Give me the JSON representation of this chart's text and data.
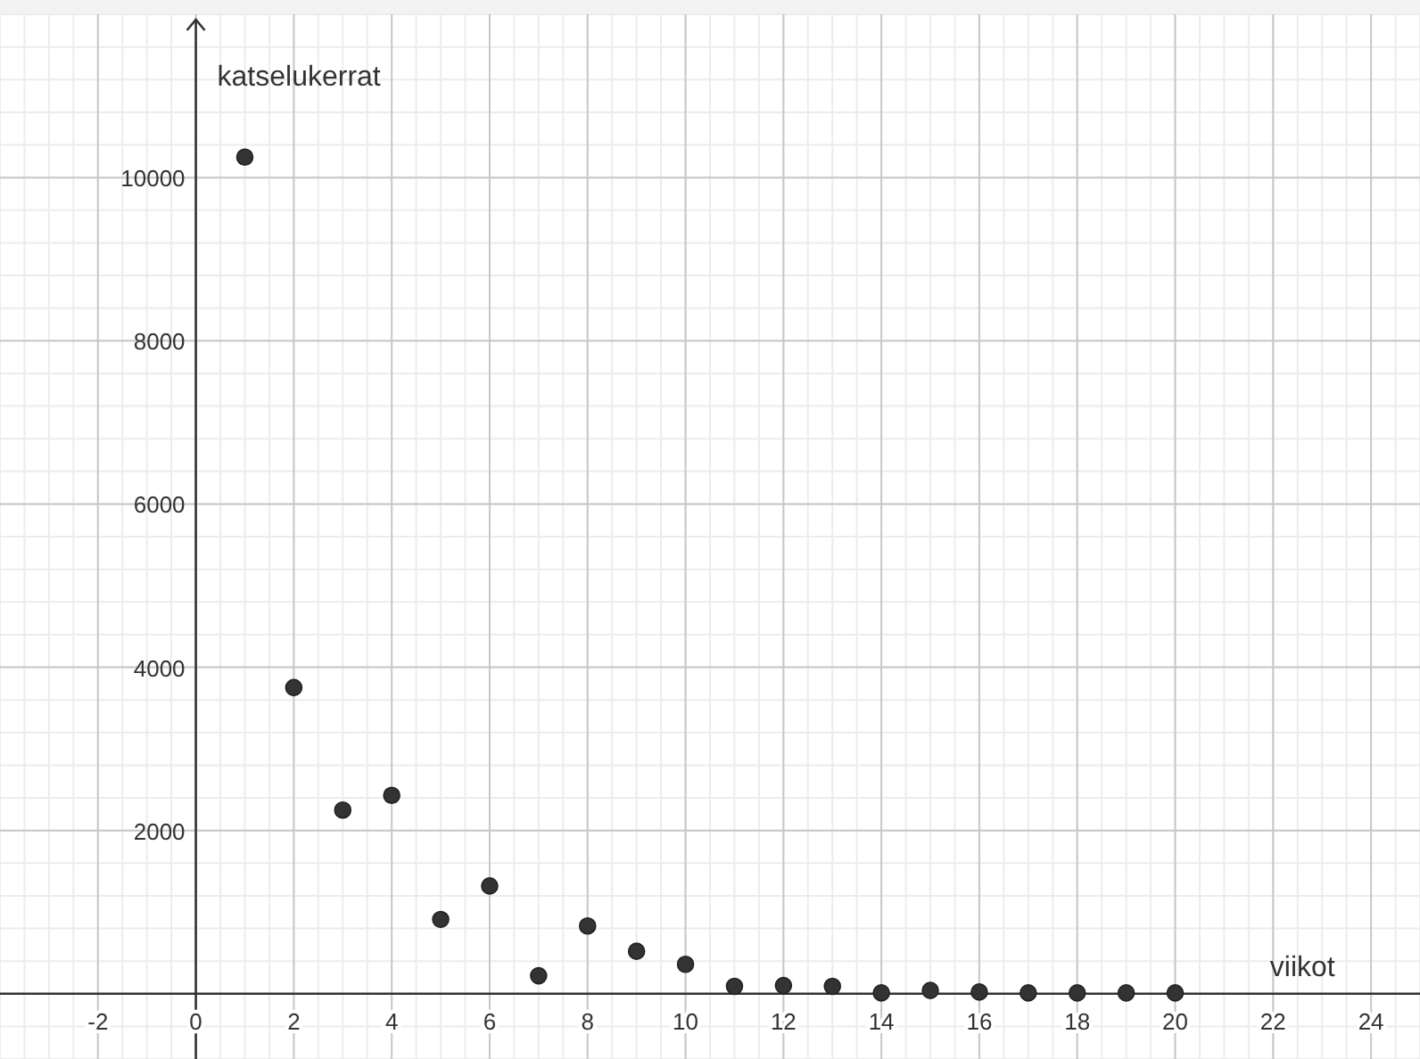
{
  "chart_data": {
    "type": "scatter",
    "xlabel": "viikot",
    "ylabel": "katselukerrat",
    "x": [
      1,
      2,
      3,
      4,
      5,
      6,
      7,
      8,
      9,
      10,
      11,
      12,
      13,
      14,
      15,
      16,
      17,
      18,
      19,
      20
    ],
    "values": [
      10250,
      3750,
      2250,
      2430,
      910,
      1320,
      220,
      830,
      520,
      360,
      90,
      100,
      90,
      10,
      40,
      20,
      10,
      10,
      10,
      10
    ],
    "color": "#333333",
    "marker": "circle",
    "grid": true,
    "xlim": [
      -4,
      25
    ],
    "ylim": [
      -800,
      12000
    ],
    "xticks": [
      -2,
      0,
      2,
      4,
      6,
      8,
      10,
      12,
      14,
      16,
      18,
      20,
      22,
      24
    ],
    "yticks": [
      2000,
      4000,
      6000,
      8000,
      10000
    ]
  }
}
